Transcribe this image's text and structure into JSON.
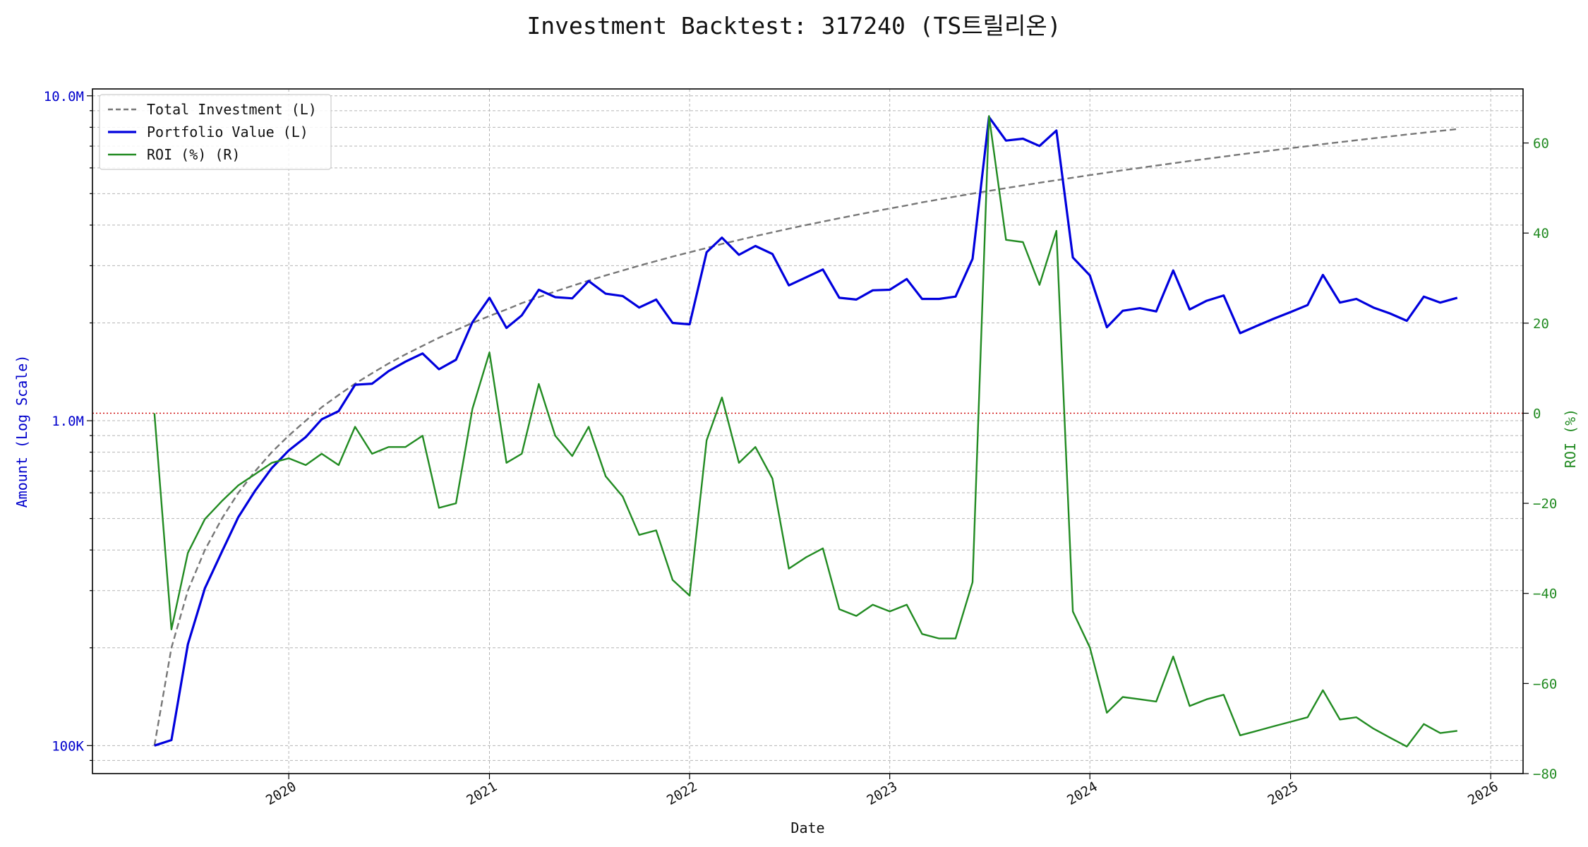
{
  "chart_data": {
    "type": "line",
    "title": "Investment Backtest: 317240 (TS트릴리온)",
    "xlabel": "Date",
    "ylabel_left": "Amount (Log Scale)",
    "ylabel_right": "ROI (%)",
    "left_axis": {
      "scale": "log",
      "ylim": [
        82000,
        10500000
      ],
      "tick_values": [
        100000,
        1000000,
        10000000
      ],
      "tick_labels": [
        "100K",
        "1.0M",
        "10.0M"
      ],
      "color": "#0000cc"
    },
    "right_axis": {
      "scale": "linear",
      "ylim": [
        -80,
        72
      ],
      "tick_values": [
        -80,
        -60,
        -40,
        -20,
        0,
        20,
        40,
        60
      ],
      "tick_labels": [
        "−80",
        "−60",
        "−40",
        "−20",
        "0",
        "20",
        "40",
        "60"
      ],
      "color": "#228b22"
    },
    "x_axis": {
      "xlim": [
        "2019-01-08",
        "2026-03-01"
      ],
      "ticks": [
        {
          "date": "2020-01-01",
          "label": "2020"
        },
        {
          "date": "2021-01-01",
          "label": "2021"
        },
        {
          "date": "2022-01-01",
          "label": "2022"
        },
        {
          "date": "2023-01-01",
          "label": "2023"
        },
        {
          "date": "2024-01-01",
          "label": "2024"
        },
        {
          "date": "2025-01-01",
          "label": "2025"
        },
        {
          "date": "2026-01-01",
          "label": "2026"
        }
      ]
    },
    "grid": true,
    "legend_position": "top-left",
    "zero_line": {
      "value": 0,
      "axis": "right",
      "color": "#cc0000",
      "style": "dotted"
    },
    "dates": [
      "2019-05-01",
      "2019-06-01",
      "2019-07-01",
      "2019-08-01",
      "2019-09-01",
      "2019-10-01",
      "2019-11-01",
      "2019-12-01",
      "2020-01-01",
      "2020-02-01",
      "2020-03-01",
      "2020-04-01",
      "2020-05-01",
      "2020-06-01",
      "2020-07-01",
      "2020-08-01",
      "2020-09-01",
      "2020-10-01",
      "2020-11-01",
      "2020-12-01",
      "2021-01-01",
      "2021-02-01",
      "2021-03-01",
      "2021-04-01",
      "2021-05-01",
      "2021-06-01",
      "2021-07-01",
      "2021-08-01",
      "2021-09-01",
      "2021-10-01",
      "2021-11-01",
      "2021-12-01",
      "2022-01-01",
      "2022-02-01",
      "2022-03-01",
      "2022-04-01",
      "2022-05-01",
      "2022-06-01",
      "2022-07-01",
      "2022-08-01",
      "2022-09-01",
      "2022-10-01",
      "2022-11-01",
      "2022-12-01",
      "2023-01-01",
      "2023-02-01",
      "2023-03-01",
      "2023-04-01",
      "2023-05-01",
      "2023-06-01",
      "2023-07-01",
      "2023-08-01",
      "2023-09-01",
      "2023-10-01",
      "2023-11-01",
      "2023-12-01",
      "2024-01-01",
      "2024-02-01",
      "2024-03-01",
      "2024-04-01",
      "2024-05-01",
      "2024-06-01",
      "2024-07-01",
      "2024-08-01",
      "2024-09-01",
      "2024-10-01",
      "2024-11-01",
      "2024-12-01",
      "2025-01-01",
      "2025-02-01",
      "2025-03-01",
      "2025-04-01",
      "2025-05-01",
      "2025-06-01",
      "2025-07-01",
      "2025-08-01",
      "2025-09-01",
      "2025-10-01",
      "2025-11-01"
    ],
    "series": [
      {
        "name": "Total Investment (L)",
        "axis": "left",
        "color": "#777777",
        "dash": "dashed",
        "values": [
          100000,
          200000,
          300000,
          400000,
          500000,
          600000,
          700000,
          800000,
          900000,
          1000000,
          1100000,
          1200000,
          1300000,
          1400000,
          1500000,
          1600000,
          1700000,
          1800000,
          1900000,
          2000000,
          2100000,
          2200000,
          2300000,
          2400000,
          2500000,
          2600000,
          2700000,
          2800000,
          2900000,
          3000000,
          3100000,
          3200000,
          3300000,
          3400000,
          3500000,
          3600000,
          3700000,
          3800000,
          3900000,
          4000000,
          4100000,
          4200000,
          4300000,
          4400000,
          4500000,
          4600000,
          4700000,
          4800000,
          4900000,
          5000000,
          5100000,
          5200000,
          5300000,
          5400000,
          5500000,
          5600000,
          5700000,
          5800000,
          5900000,
          6000000,
          6100000,
          6200000,
          6300000,
          6400000,
          6500000,
          6600000,
          6700000,
          6800000,
          6900000,
          7000000,
          7100000,
          7200000,
          7300000,
          7400000,
          7500000,
          7600000,
          7700000,
          7800000,
          7900000
        ]
      },
      {
        "name": "Portfolio Value (L)",
        "axis": "left",
        "color": "#0000dd",
        "dash": "solid",
        "values": [
          100000,
          104000,
          205000,
          305000,
          395000,
          505000,
          610000,
          715000,
          810000,
          890000,
          1010000,
          1070000,
          1290000,
          1300000,
          1420000,
          1520000,
          1610000,
          1440000,
          1540000,
          2010000,
          2390000,
          1930000,
          2110000,
          2530000,
          2400000,
          2380000,
          2690000,
          2460000,
          2420000,
          2230000,
          2360000,
          2000000,
          1980000,
          3300000,
          3660000,
          3240000,
          3450000,
          3260000,
          2610000,
          2760000,
          2920000,
          2390000,
          2360000,
          2520000,
          2530000,
          2730000,
          2370000,
          2370000,
          2410000,
          3150000,
          8600000,
          7280000,
          7380000,
          7010000,
          7820000,
          3180000,
          2800000,
          1940000,
          2180000,
          2220000,
          2170000,
          2900000,
          2200000,
          2340000,
          2430000,
          1860000,
          1960000,
          2060000,
          2160000,
          2270000,
          2810000,
          2310000,
          2370000,
          2230000,
          2140000,
          2030000,
          2410000,
          2310000,
          2390000
        ]
      },
      {
        "name": "ROI (%) (R)",
        "axis": "right",
        "color": "#228b22",
        "dash": "solid",
        "values": [
          0,
          -48,
          -31,
          -23.5,
          -19.5,
          -16,
          -13.5,
          -11,
          -10,
          -11.5,
          -9,
          -11.5,
          -3,
          -9,
          -7.5,
          -7.5,
          -5,
          -21,
          -20,
          1,
          13.5,
          -11,
          -9,
          6.5,
          -5,
          -9.5,
          -3,
          -14,
          -18.5,
          -27,
          -26,
          -37,
          -40.5,
          -6,
          3.5,
          -11,
          -7.5,
          -14.5,
          -34.5,
          -32,
          -30,
          -43.5,
          -45,
          -42.5,
          -44,
          -42.5,
          -49,
          -50,
          -50,
          -37.5,
          66,
          38.5,
          38,
          28.5,
          40.5,
          -44,
          -52,
          -66.5,
          -63,
          -63.5,
          -64,
          -54,
          -65,
          -63.5,
          -62.5,
          -71.5,
          -70.5,
          -69.5,
          -68.5,
          -67.5,
          -61.5,
          -68,
          -67.5,
          -70,
          -72,
          -74,
          -69,
          -71,
          -70.5
        ]
      }
    ]
  }
}
